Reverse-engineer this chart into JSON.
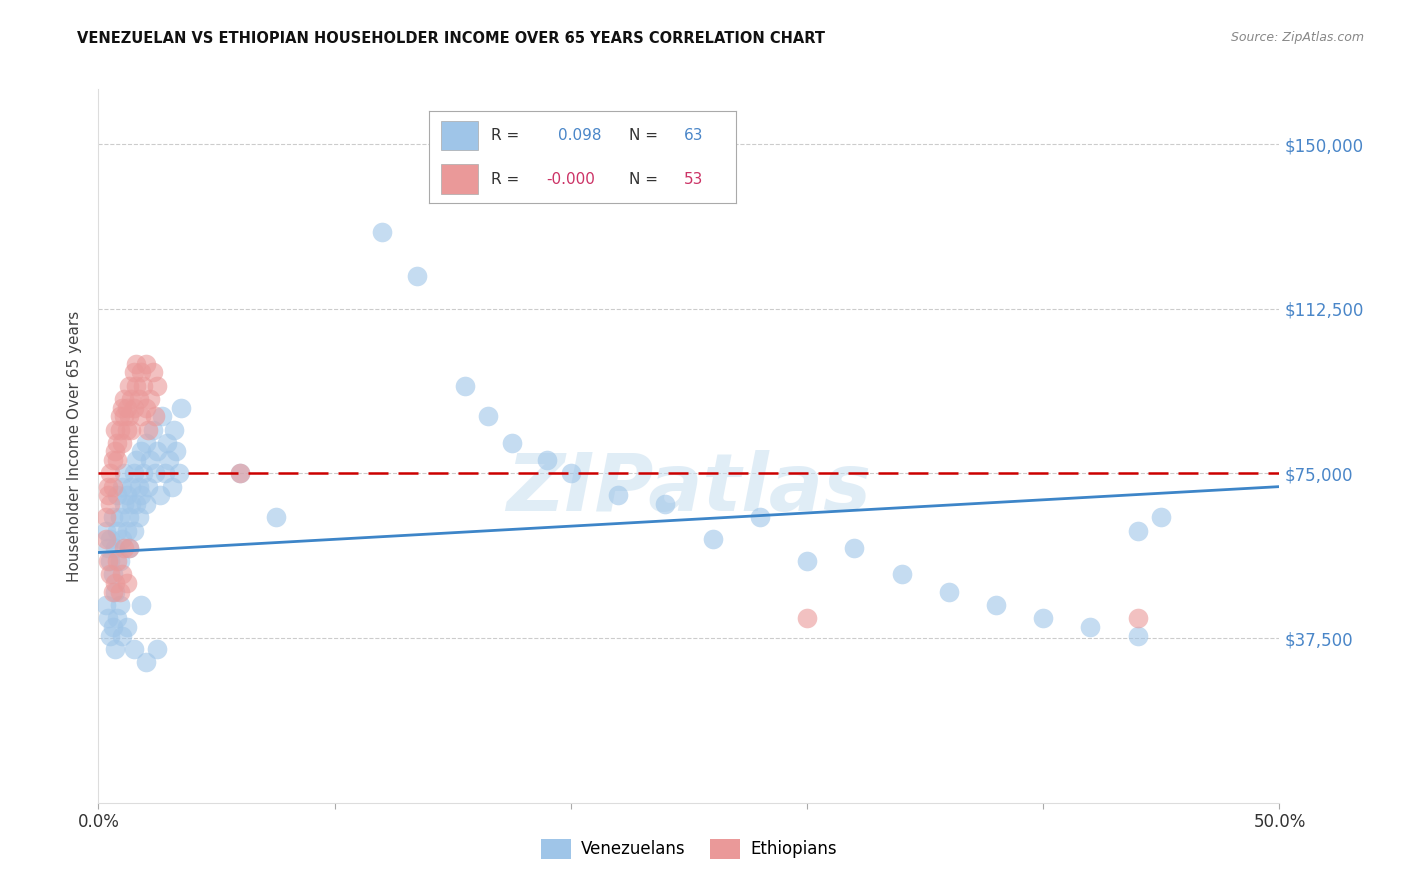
{
  "title": "VENEZUELAN VS ETHIOPIAN HOUSEHOLDER INCOME OVER 65 YEARS CORRELATION CHART",
  "source": "Source: ZipAtlas.com",
  "ylabel": "Householder Income Over 65 years",
  "ytick_vals": [
    0,
    37500,
    75000,
    112500,
    150000
  ],
  "xlim": [
    0.0,
    0.5
  ],
  "ylim": [
    0,
    162500
  ],
  "legend_label1": "Venezuelans",
  "legend_label2": "Ethiopians",
  "blue_color": "#9fc5e8",
  "pink_color": "#ea9999",
  "blue_line_color": "#3d85c8",
  "pink_line_color": "#cc0000",
  "blue_scatter": [
    [
      0.003,
      62000
    ],
    [
      0.004,
      58000
    ],
    [
      0.005,
      55000
    ],
    [
      0.005,
      60000
    ],
    [
      0.006,
      52000
    ],
    [
      0.006,
      65000
    ],
    [
      0.007,
      48000
    ],
    [
      0.007,
      58000
    ],
    [
      0.008,
      62000
    ],
    [
      0.008,
      70000
    ],
    [
      0.009,
      55000
    ],
    [
      0.009,
      65000
    ],
    [
      0.01,
      72000
    ],
    [
      0.01,
      60000
    ],
    [
      0.011,
      68000
    ],
    [
      0.011,
      75000
    ],
    [
      0.012,
      62000
    ],
    [
      0.012,
      70000
    ],
    [
      0.013,
      65000
    ],
    [
      0.013,
      58000
    ],
    [
      0.014,
      72000
    ],
    [
      0.014,
      68000
    ],
    [
      0.015,
      62000
    ],
    [
      0.015,
      75000
    ],
    [
      0.016,
      68000
    ],
    [
      0.016,
      78000
    ],
    [
      0.017,
      72000
    ],
    [
      0.017,
      65000
    ],
    [
      0.018,
      80000
    ],
    [
      0.018,
      70000
    ],
    [
      0.019,
      75000
    ],
    [
      0.02,
      68000
    ],
    [
      0.02,
      82000
    ],
    [
      0.021,
      72000
    ],
    [
      0.022,
      78000
    ],
    [
      0.023,
      85000
    ],
    [
      0.024,
      75000
    ],
    [
      0.025,
      80000
    ],
    [
      0.026,
      70000
    ],
    [
      0.027,
      88000
    ],
    [
      0.028,
      75000
    ],
    [
      0.029,
      82000
    ],
    [
      0.03,
      78000
    ],
    [
      0.031,
      72000
    ],
    [
      0.032,
      85000
    ],
    [
      0.033,
      80000
    ],
    [
      0.034,
      75000
    ],
    [
      0.035,
      90000
    ],
    [
      0.003,
      45000
    ],
    [
      0.004,
      42000
    ],
    [
      0.005,
      38000
    ],
    [
      0.006,
      40000
    ],
    [
      0.007,
      35000
    ],
    [
      0.008,
      42000
    ],
    [
      0.009,
      45000
    ],
    [
      0.01,
      38000
    ],
    [
      0.012,
      40000
    ],
    [
      0.018,
      45000
    ],
    [
      0.06,
      75000
    ],
    [
      0.075,
      65000
    ],
    [
      0.12,
      130000
    ],
    [
      0.135,
      120000
    ],
    [
      0.155,
      95000
    ],
    [
      0.165,
      88000
    ],
    [
      0.175,
      82000
    ],
    [
      0.19,
      78000
    ],
    [
      0.2,
      75000
    ],
    [
      0.22,
      70000
    ],
    [
      0.24,
      68000
    ],
    [
      0.26,
      60000
    ],
    [
      0.28,
      65000
    ],
    [
      0.3,
      55000
    ],
    [
      0.32,
      58000
    ],
    [
      0.34,
      52000
    ],
    [
      0.36,
      48000
    ],
    [
      0.38,
      45000
    ],
    [
      0.4,
      42000
    ],
    [
      0.42,
      40000
    ],
    [
      0.44,
      38000
    ],
    [
      0.44,
      62000
    ],
    [
      0.45,
      65000
    ],
    [
      0.015,
      35000
    ],
    [
      0.02,
      32000
    ],
    [
      0.025,
      35000
    ]
  ],
  "pink_scatter": [
    [
      0.003,
      65000
    ],
    [
      0.004,
      70000
    ],
    [
      0.004,
      72000
    ],
    [
      0.005,
      75000
    ],
    [
      0.005,
      68000
    ],
    [
      0.006,
      78000
    ],
    [
      0.006,
      72000
    ],
    [
      0.007,
      80000
    ],
    [
      0.007,
      85000
    ],
    [
      0.008,
      78000
    ],
    [
      0.008,
      82000
    ],
    [
      0.009,
      88000
    ],
    [
      0.009,
      85000
    ],
    [
      0.01,
      90000
    ],
    [
      0.01,
      82000
    ],
    [
      0.011,
      88000
    ],
    [
      0.011,
      92000
    ],
    [
      0.012,
      85000
    ],
    [
      0.012,
      90000
    ],
    [
      0.013,
      95000
    ],
    [
      0.013,
      88000
    ],
    [
      0.014,
      92000
    ],
    [
      0.014,
      85000
    ],
    [
      0.015,
      98000
    ],
    [
      0.015,
      90000
    ],
    [
      0.016,
      95000
    ],
    [
      0.016,
      100000
    ],
    [
      0.017,
      92000
    ],
    [
      0.018,
      98000
    ],
    [
      0.018,
      88000
    ],
    [
      0.019,
      95000
    ],
    [
      0.02,
      90000
    ],
    [
      0.02,
      100000
    ],
    [
      0.021,
      85000
    ],
    [
      0.022,
      92000
    ],
    [
      0.023,
      98000
    ],
    [
      0.024,
      88000
    ],
    [
      0.025,
      95000
    ],
    [
      0.003,
      60000
    ],
    [
      0.004,
      55000
    ],
    [
      0.005,
      52000
    ],
    [
      0.006,
      48000
    ],
    [
      0.007,
      50000
    ],
    [
      0.008,
      55000
    ],
    [
      0.009,
      48000
    ],
    [
      0.01,
      52000
    ],
    [
      0.011,
      58000
    ],
    [
      0.012,
      50000
    ],
    [
      0.013,
      58000
    ],
    [
      0.06,
      75000
    ],
    [
      0.3,
      42000
    ],
    [
      0.44,
      42000
    ]
  ],
  "blue_trend_x": [
    0.0,
    0.5
  ],
  "blue_trend_y": [
    57000,
    72000
  ],
  "pink_trend_x": [
    0.0,
    0.5
  ],
  "pink_trend_y": [
    75000,
    75000
  ],
  "watermark": "ZIPatlas",
  "background_color": "#ffffff",
  "grid_color": "#cccccc"
}
